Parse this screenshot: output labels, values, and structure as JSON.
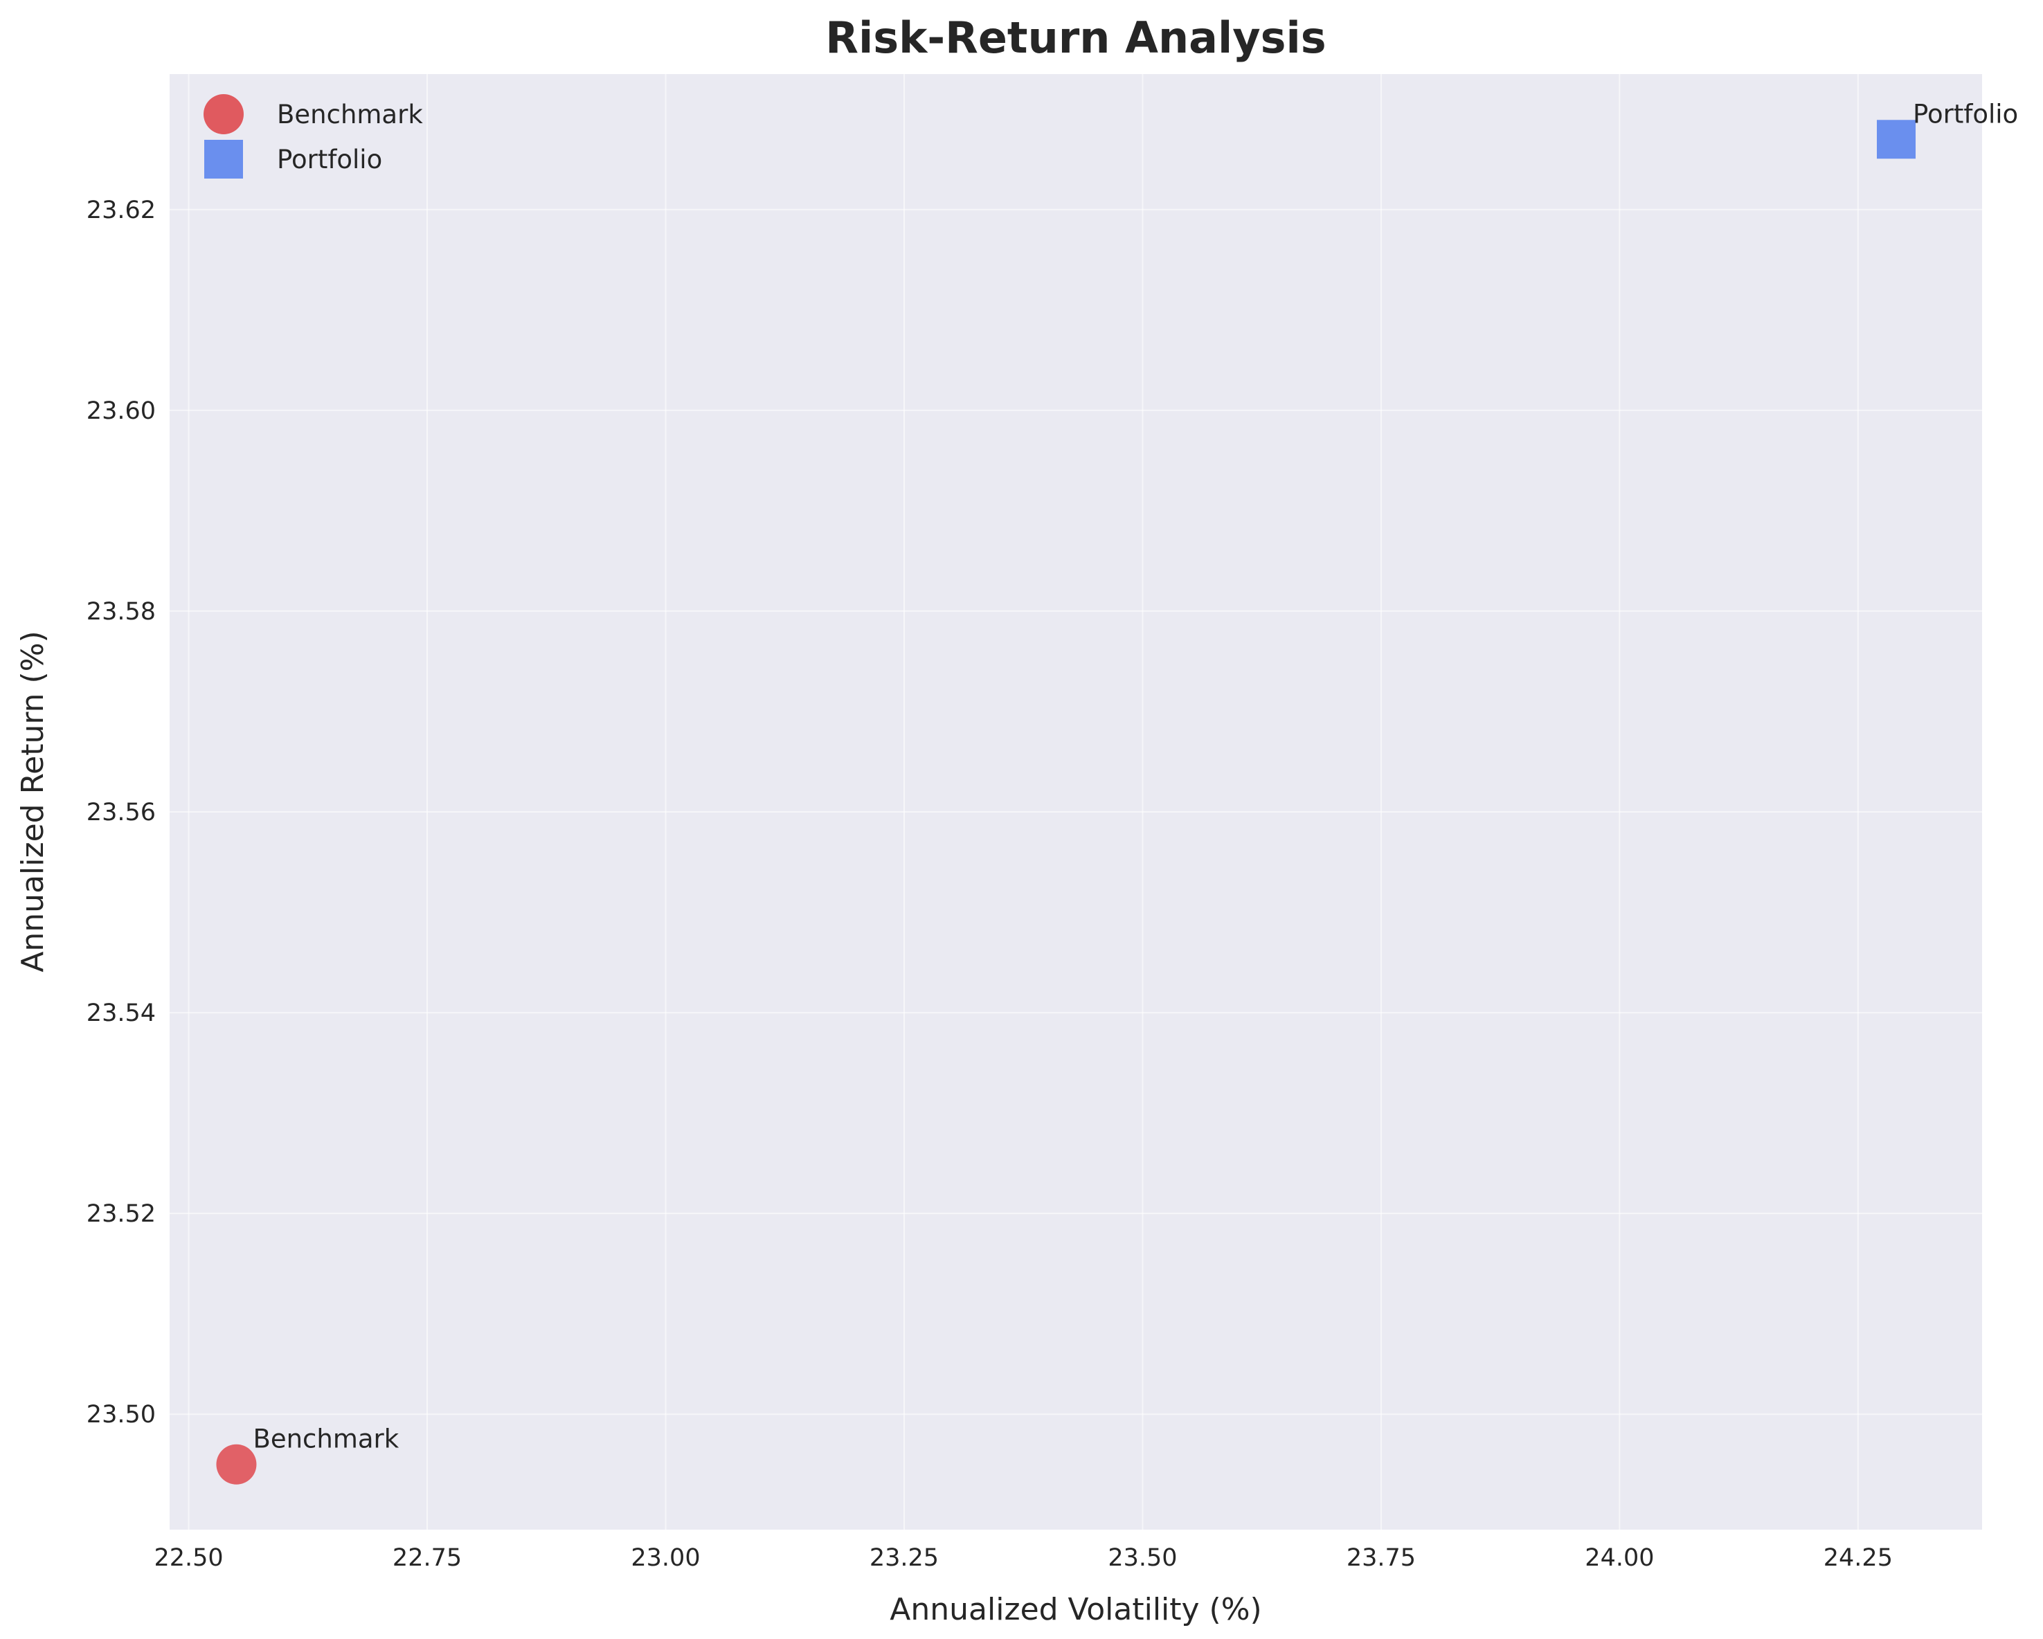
{
  "chart_data": {
    "type": "scatter",
    "title": "Risk-Return Analysis",
    "xlabel": "Annualized Volatility (%)",
    "ylabel": "Annualized Return (%)",
    "xlim": [
      22.48,
      24.38
    ],
    "ylim": [
      23.4885,
      23.6335
    ],
    "xticks": [
      22.5,
      22.75,
      23.0,
      23.25,
      23.5,
      23.75,
      24.0,
      24.25
    ],
    "xtick_labels": [
      "22.50",
      "22.75",
      "23.00",
      "23.25",
      "23.50",
      "23.75",
      "24.00",
      "24.25"
    ],
    "yticks": [
      23.5,
      23.52,
      23.54,
      23.56,
      23.58,
      23.6,
      23.62
    ],
    "ytick_labels": [
      "23.50",
      "23.52",
      "23.54",
      "23.56",
      "23.58",
      "23.60",
      "23.62"
    ],
    "grid": true,
    "legend_position": "top-left",
    "series": [
      {
        "name": "Benchmark",
        "marker": "circle",
        "color": "#e05a5f",
        "x": [
          22.55
        ],
        "y": [
          23.495
        ],
        "labels": [
          "Benchmark"
        ]
      },
      {
        "name": "Portfolio",
        "marker": "square",
        "color": "#6a8fee",
        "x": [
          24.29
        ],
        "y": [
          23.627
        ],
        "labels": [
          "Portfolio"
        ]
      }
    ],
    "background_color": "#eaeaf2",
    "grid_color": "#ffffff"
  }
}
